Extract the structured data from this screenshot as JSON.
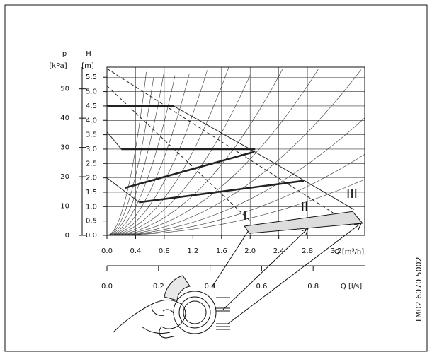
{
  "chart_data": {
    "type": "line",
    "x_label": "Q [m³/h]",
    "y_label": "H",
    "y_unit": "[m]",
    "y2_label": "p",
    "y2_unit": "[kPa]",
    "x2_label": "Q [l/s]",
    "xlim": [
      0,
      3.6
    ],
    "xticks": [
      {
        "value": 0,
        "label": "0.0"
      },
      0.4,
      0.8,
      1.2,
      1.6,
      {
        "value": 2,
        "label": "2.0"
      },
      2.4,
      2.8,
      3.2
    ],
    "ylim": [
      0,
      5.85
    ],
    "yticks": [
      {
        "value": 0,
        "label": "0.0"
      },
      0.5,
      {
        "value": 1,
        "label": "1.0"
      },
      1.5,
      {
        "value": 2,
        "label": "2.0"
      },
      2.5,
      {
        "value": 3,
        "label": "3.0"
      },
      3.5,
      {
        "value": 4,
        "label": "4.0"
      },
      4.5,
      {
        "value": 5,
        "label": "5.0"
      },
      5.5
    ],
    "y2lim": [
      0,
      57.4
    ],
    "y2ticks": [
      0,
      10,
      20,
      30,
      40,
      50
    ],
    "x2lim": [
      0,
      1.0
    ],
    "x2ticks": [
      {
        "value": 0,
        "label": "0.0"
      },
      0.2,
      0.4,
      0.6,
      0.8
    ],
    "grid": true,
    "series": [
      {
        "style": "thick",
        "color": "#222",
        "x": [
          0,
          0.93
        ],
        "values": [
          4.5,
          4.5
        ]
      },
      {
        "style": "thick",
        "color": "#222",
        "x": [
          0.2,
          2.07
        ],
        "values": [
          3.0,
          3.0
        ]
      },
      {
        "style": "thick",
        "color": "#222",
        "x": [
          0.25,
          2.05
        ],
        "values": [
          1.65,
          2.9
        ]
      },
      {
        "style": "thick",
        "color": "#222",
        "x": [
          0.45,
          2.75
        ],
        "values": [
          1.15,
          1.9
        ]
      },
      {
        "style": "thin",
        "color": "#222",
        "x": [
          0.93,
          2.07,
          3.45
        ],
        "values": [
          4.5,
          2.9,
          0.9
        ]
      },
      {
        "style": "thin",
        "color": "#222",
        "x": [
          0,
          0.2
        ],
        "values": [
          3.6,
          3.0
        ]
      },
      {
        "style": "thin",
        "color": "#222",
        "x": [
          0,
          0.45
        ],
        "values": [
          2.0,
          1.15
        ]
      },
      {
        "style": "dashed",
        "color": "#222",
        "x": [
          0,
          3.4
        ],
        "values": [
          5.8,
          0.4
        ]
      },
      {
        "style": "dashed",
        "color": "#222",
        "x": [
          0,
          2.0
        ],
        "values": [
          5.2,
          0.5
        ]
      },
      {
        "style": "area",
        "color": "#ddd",
        "x": [
          1.92,
          1.99,
          3.57,
          3.43
        ],
        "values": [
          0.32,
          0.07,
          0.42,
          0.83
        ]
      }
    ],
    "annotations": [
      "I",
      "II",
      "III"
    ],
    "watermark": "TM02 6070 5002"
  }
}
